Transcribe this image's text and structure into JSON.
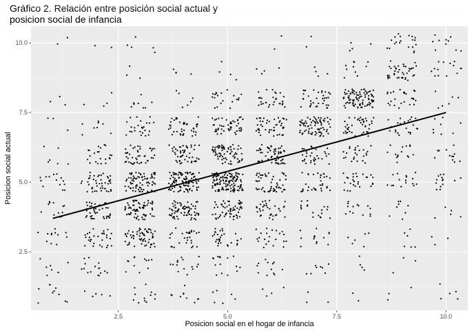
{
  "chart_data": {
    "type": "scatter",
    "title_lines": [
      "Gráfico 2. Relación entre posición social actual y",
      "posicion social de infancia"
    ],
    "xlabel": "Posicion social en el hogar de infancia",
    "ylabel": "Posicion social actual",
    "xlim": [
      0.5,
      10.5
    ],
    "ylim": [
      0.4,
      10.6
    ],
    "x_ticks": [
      2.5,
      5.0,
      7.5,
      10.0
    ],
    "x_tick_labels": [
      "2.5",
      "5.0",
      "7.5",
      "10.0"
    ],
    "y_ticks": [
      2.5,
      5.0,
      7.5,
      10.0
    ],
    "y_tick_labels": [
      "2.5",
      "5.0",
      "7.5",
      "10.0"
    ],
    "grid": true,
    "theme": "ggplot grey panel",
    "jitter": 0.35,
    "clusters": [
      {
        "x": 1,
        "y": 1,
        "n": 10
      },
      {
        "x": 1,
        "y": 2,
        "n": 7
      },
      {
        "x": 1,
        "y": 3,
        "n": 12
      },
      {
        "x": 1,
        "y": 4,
        "n": 12
      },
      {
        "x": 1,
        "y": 5,
        "n": 14
      },
      {
        "x": 1,
        "y": 6,
        "n": 6
      },
      {
        "x": 1,
        "y": 7,
        "n": 3
      },
      {
        "x": 1,
        "y": 8,
        "n": 3
      },
      {
        "x": 1,
        "y": 10,
        "n": 2
      },
      {
        "x": 2,
        "y": 1,
        "n": 5
      },
      {
        "x": 2,
        "y": 2,
        "n": 16
      },
      {
        "x": 2,
        "y": 3,
        "n": 30
      },
      {
        "x": 2,
        "y": 4,
        "n": 40
      },
      {
        "x": 2,
        "y": 5,
        "n": 45
      },
      {
        "x": 2,
        "y": 6,
        "n": 22
      },
      {
        "x": 2,
        "y": 7,
        "n": 8
      },
      {
        "x": 2,
        "y": 8,
        "n": 4
      },
      {
        "x": 2,
        "y": 10,
        "n": 2
      },
      {
        "x": 3,
        "y": 1,
        "n": 12
      },
      {
        "x": 3,
        "y": 2,
        "n": 12
      },
      {
        "x": 3,
        "y": 3,
        "n": 60
      },
      {
        "x": 3,
        "y": 4,
        "n": 65
      },
      {
        "x": 3,
        "y": 5,
        "n": 75
      },
      {
        "x": 3,
        "y": 6,
        "n": 45
      },
      {
        "x": 3,
        "y": 7,
        "n": 25
      },
      {
        "x": 3,
        "y": 8,
        "n": 8
      },
      {
        "x": 3,
        "y": 9,
        "n": 3
      },
      {
        "x": 3,
        "y": 10,
        "n": 5
      },
      {
        "x": 4,
        "y": 1,
        "n": 10
      },
      {
        "x": 4,
        "y": 2,
        "n": 15
      },
      {
        "x": 4,
        "y": 3,
        "n": 28
      },
      {
        "x": 4,
        "y": 4,
        "n": 70
      },
      {
        "x": 4,
        "y": 5,
        "n": 100
      },
      {
        "x": 4,
        "y": 6,
        "n": 50
      },
      {
        "x": 4,
        "y": 7,
        "n": 40
      },
      {
        "x": 4,
        "y": 8,
        "n": 6
      },
      {
        "x": 4,
        "y": 9,
        "n": 4
      },
      {
        "x": 5,
        "y": 1,
        "n": 6
      },
      {
        "x": 5,
        "y": 2,
        "n": 16
      },
      {
        "x": 5,
        "y": 3,
        "n": 30
      },
      {
        "x": 5,
        "y": 4,
        "n": 60
      },
      {
        "x": 5,
        "y": 5,
        "n": 130
      },
      {
        "x": 5,
        "y": 6,
        "n": 70
      },
      {
        "x": 5,
        "y": 7,
        "n": 50
      },
      {
        "x": 5,
        "y": 8,
        "n": 20
      },
      {
        "x": 5,
        "y": 9,
        "n": 4
      },
      {
        "x": 6,
        "y": 1,
        "n": 4
      },
      {
        "x": 6,
        "y": 2,
        "n": 12
      },
      {
        "x": 6,
        "y": 3,
        "n": 22
      },
      {
        "x": 6,
        "y": 4,
        "n": 35
      },
      {
        "x": 6,
        "y": 5,
        "n": 55
      },
      {
        "x": 6,
        "y": 6,
        "n": 60
      },
      {
        "x": 6,
        "y": 7,
        "n": 45
      },
      {
        "x": 6,
        "y": 8,
        "n": 30
      },
      {
        "x": 6,
        "y": 9,
        "n": 4
      },
      {
        "x": 6,
        "y": 10,
        "n": 2
      },
      {
        "x": 7,
        "y": 1,
        "n": 3
      },
      {
        "x": 7,
        "y": 2,
        "n": 8
      },
      {
        "x": 7,
        "y": 3,
        "n": 14
      },
      {
        "x": 7,
        "y": 4,
        "n": 18
      },
      {
        "x": 7,
        "y": 5,
        "n": 35
      },
      {
        "x": 7,
        "y": 6,
        "n": 35
      },
      {
        "x": 7,
        "y": 7,
        "n": 75
      },
      {
        "x": 7,
        "y": 8,
        "n": 35
      },
      {
        "x": 7,
        "y": 9,
        "n": 4
      },
      {
        "x": 7,
        "y": 10,
        "n": 2
      },
      {
        "x": 8,
        "y": 1,
        "n": 2
      },
      {
        "x": 8,
        "y": 2,
        "n": 4
      },
      {
        "x": 8,
        "y": 3,
        "n": 6
      },
      {
        "x": 8,
        "y": 4,
        "n": 14
      },
      {
        "x": 8,
        "y": 5,
        "n": 28
      },
      {
        "x": 8,
        "y": 6,
        "n": 25
      },
      {
        "x": 8,
        "y": 7,
        "n": 40
      },
      {
        "x": 8,
        "y": 8,
        "n": 90
      },
      {
        "x": 8,
        "y": 9,
        "n": 10
      },
      {
        "x": 8,
        "y": 10,
        "n": 4
      },
      {
        "x": 9,
        "y": 1,
        "n": 3
      },
      {
        "x": 9,
        "y": 2,
        "n": 3
      },
      {
        "x": 9,
        "y": 3,
        "n": 6
      },
      {
        "x": 9,
        "y": 4,
        "n": 8
      },
      {
        "x": 9,
        "y": 5,
        "n": 16
      },
      {
        "x": 9,
        "y": 6,
        "n": 15
      },
      {
        "x": 9,
        "y": 7,
        "n": 22
      },
      {
        "x": 9,
        "y": 8,
        "n": 25
      },
      {
        "x": 9,
        "y": 9,
        "n": 40
      },
      {
        "x": 9,
        "y": 10,
        "n": 20
      },
      {
        "x": 10,
        "y": 1,
        "n": 5
      },
      {
        "x": 10,
        "y": 3,
        "n": 3
      },
      {
        "x": 10,
        "y": 4,
        "n": 5
      },
      {
        "x": 10,
        "y": 5,
        "n": 14
      },
      {
        "x": 10,
        "y": 6,
        "n": 12
      },
      {
        "x": 10,
        "y": 7,
        "n": 8
      },
      {
        "x": 10,
        "y": 8,
        "n": 6
      },
      {
        "x": 10,
        "y": 9,
        "n": 14
      },
      {
        "x": 10,
        "y": 10,
        "n": 10
      }
    ],
    "fit_line": {
      "x1": 1.0,
      "y1": 3.7,
      "x2": 10.0,
      "y2": 7.5
    },
    "colors": {
      "panel": "#ebebeb",
      "grid_major": "#ffffff",
      "grid_minor": "#f5f5f5",
      "points": "#000000",
      "line": "#000000"
    }
  }
}
